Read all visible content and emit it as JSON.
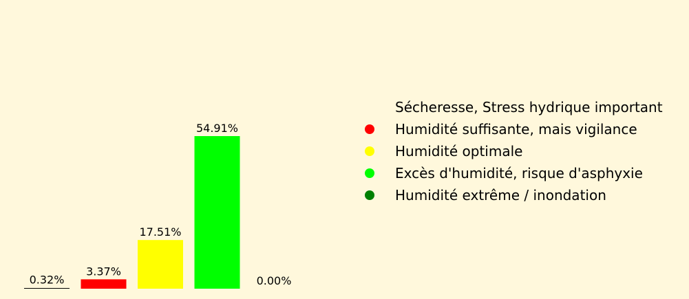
{
  "chart_data": {
    "type": "bar",
    "categories": [
      "Sécheresse, Stress hydrique important",
      "Humidité suffisante, mais vigilance",
      "Humidité optimale",
      "Excès d'humidité, risque d'asphyxie",
      "Humidité extrême / inondation"
    ],
    "values": [
      0.32,
      3.37,
      17.51,
      54.91,
      0.0
    ],
    "data_labels": [
      "0.32%",
      "3.37%",
      "17.51%",
      "54.91%",
      "0.00%"
    ],
    "colors": [
      "#fff8dc",
      "#ff0000",
      "#ffff00",
      "#00ff00",
      "#008000"
    ],
    "ylim": [
      0,
      54.91
    ],
    "grid": false,
    "axes_visible": false,
    "legend_position": "right"
  },
  "legend": {
    "items": [
      {
        "label": "Sécheresse, Stress hydrique important",
        "color": "#fff8dc"
      },
      {
        "label": "Humidité suffisante, mais vigilance",
        "color": "#ff0000"
      },
      {
        "label": "Humidité optimale",
        "color": "#ffff00"
      },
      {
        "label": "Excès d'humidité, risque d'asphyxie",
        "color": "#00ff00"
      },
      {
        "label": "Humidité extrême / inondation",
        "color": "#008000"
      }
    ]
  },
  "colors": {
    "background": "#fff8dc",
    "text": "#000000"
  }
}
